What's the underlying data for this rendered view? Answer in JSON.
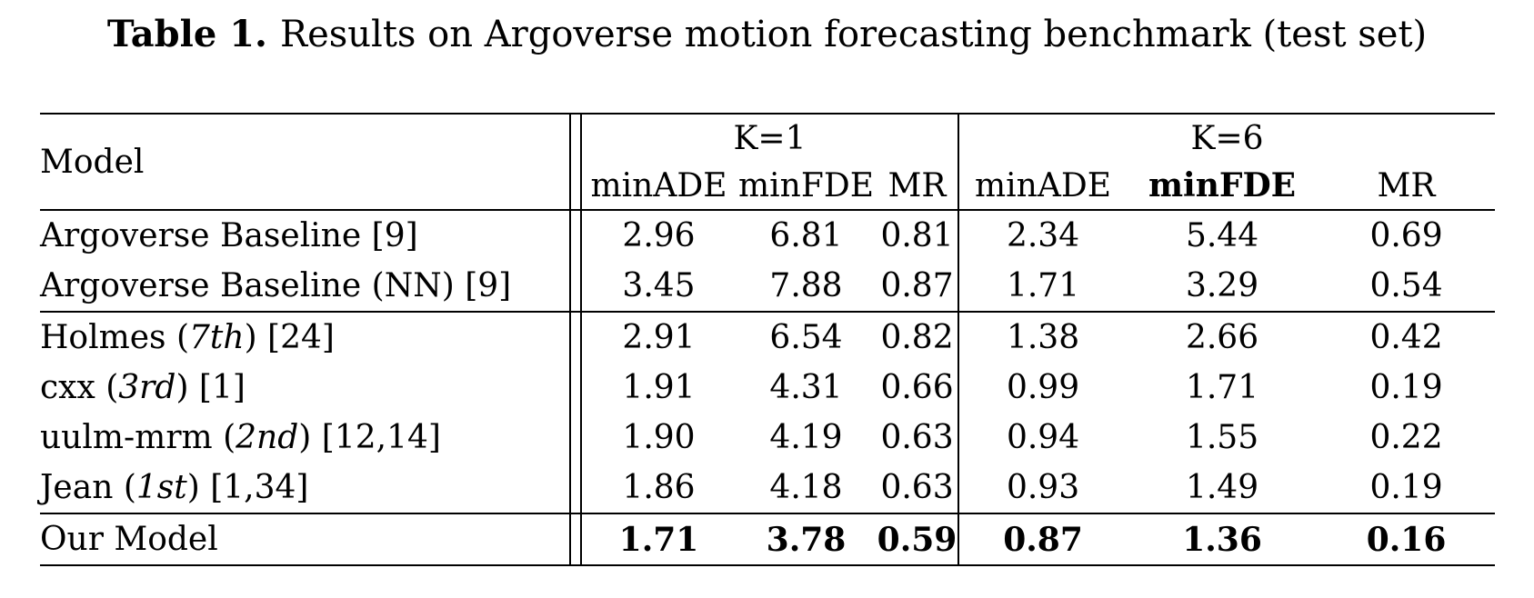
{
  "page": {
    "background": "#ffffff",
    "text_color": "#000000"
  },
  "caption": {
    "label": "Table 1.",
    "text": "Results on Argoverse motion forecasting benchmark (test set)"
  },
  "table": {
    "header": {
      "model_col": "Model",
      "groups": [
        {
          "label": "K=1",
          "metrics": [
            {
              "text": "minADE",
              "bold": false
            },
            {
              "text": "minFDE",
              "bold": false
            },
            {
              "text": "MR",
              "bold": false
            }
          ]
        },
        {
          "label": "K=6",
          "metrics": [
            {
              "text": "minADE",
              "bold": false
            },
            {
              "text": "minFDE",
              "bold": true
            },
            {
              "text": "MR",
              "bold": false
            }
          ]
        }
      ]
    },
    "row_groups": [
      {
        "rows": [
          {
            "model": {
              "pre": "Argoverse Baseline [9]",
              "italic": "",
              "post": ""
            },
            "k1": [
              "2.96",
              "6.81",
              "0.81"
            ],
            "k6": [
              "2.34",
              "5.44",
              "0.69"
            ],
            "bold": false
          },
          {
            "model": {
              "pre": "Argoverse Baseline (NN) [9]",
              "italic": "",
              "post": ""
            },
            "k1": [
              "3.45",
              "7.88",
              "0.87"
            ],
            "k6": [
              "1.71",
              "3.29",
              "0.54"
            ],
            "bold": false
          }
        ]
      },
      {
        "rows": [
          {
            "model": {
              "pre": "Holmes (",
              "italic": "7th",
              "post": ") [24]"
            },
            "k1": [
              "2.91",
              "6.54",
              "0.82"
            ],
            "k6": [
              "1.38",
              "2.66",
              "0.42"
            ],
            "bold": false
          },
          {
            "model": {
              "pre": "cxx (",
              "italic": "3rd",
              "post": ") [1]"
            },
            "k1": [
              "1.91",
              "4.31",
              "0.66"
            ],
            "k6": [
              "0.99",
              "1.71",
              "0.19"
            ],
            "bold": false
          },
          {
            "model": {
              "pre": "uulm-mrm (",
              "italic": "2nd",
              "post": ") [12,14]"
            },
            "k1": [
              "1.90",
              "4.19",
              "0.63"
            ],
            "k6": [
              "0.94",
              "1.55",
              "0.22"
            ],
            "bold": false
          },
          {
            "model": {
              "pre": "Jean (",
              "italic": "1st",
              "post": ") [1,34]"
            },
            "k1": [
              "1.86",
              "4.18",
              "0.63"
            ],
            "k6": [
              "0.93",
              "1.49",
              "0.19"
            ],
            "bold": false
          }
        ]
      },
      {
        "rows": [
          {
            "model": {
              "pre": "Our Model",
              "italic": "",
              "post": ""
            },
            "k1": [
              "1.71",
              "3.78",
              "0.59"
            ],
            "k6": [
              "0.87",
              "1.36",
              "0.16"
            ],
            "bold": true
          }
        ]
      }
    ]
  }
}
